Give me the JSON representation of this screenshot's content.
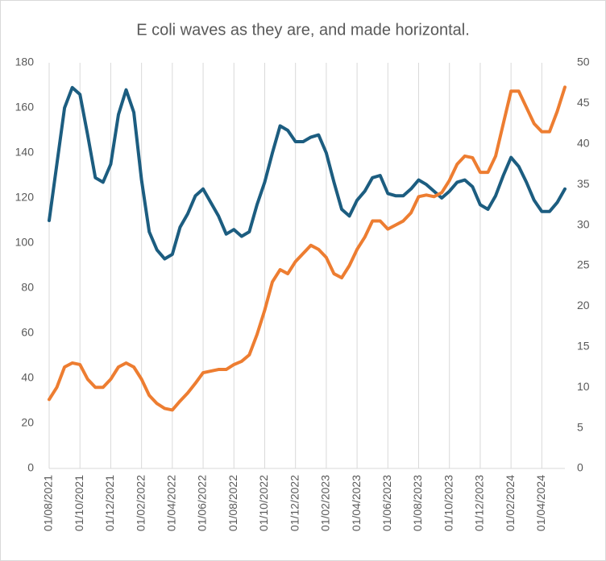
{
  "chart_data": {
    "type": "line",
    "title": "E coli waves as they are, and made horizontal.",
    "categories": [
      "01/08/2021",
      null,
      null,
      null,
      "01/10/2021",
      null,
      null,
      null,
      "01/12/2021",
      null,
      null,
      null,
      "01/02/2022",
      null,
      null,
      null,
      "01/04/2022",
      null,
      null,
      null,
      "01/06/2022",
      null,
      null,
      null,
      "01/08/2022",
      null,
      null,
      null,
      "01/10/2022",
      null,
      null,
      null,
      "01/12/2022",
      null,
      null,
      null,
      "01/02/2023",
      null,
      null,
      null,
      "01/04/2023",
      null,
      null,
      null,
      "01/06/2023",
      null,
      null,
      null,
      "01/08/2023",
      null,
      null,
      null,
      "01/10/2023",
      null,
      null,
      null,
      "01/12/2023",
      null,
      null,
      null,
      "01/02/2024",
      null,
      null,
      null,
      "01/04/2024",
      null,
      null,
      null
    ],
    "series": [
      {
        "color": "#1c5d80",
        "values": [
          110,
          135,
          160,
          169,
          166,
          148,
          129,
          127,
          135,
          157,
          168,
          158,
          128,
          105,
          97,
          93,
          95,
          107,
          113,
          121,
          124,
          118,
          112,
          104,
          106,
          103,
          105,
          117,
          127,
          140,
          152,
          150,
          145,
          145,
          147,
          148,
          140,
          127,
          115,
          112,
          119,
          123,
          129,
          130,
          122,
          121,
          121,
          124,
          128,
          126,
          123,
          120,
          123,
          127,
          128,
          125,
          117,
          115,
          121,
          130,
          138,
          134,
          127,
          119,
          114,
          114,
          118,
          124
        ]
      },
      {
        "color": "#ed7d31",
        "axis": "y2",
        "values": [
          8.5,
          10,
          12.5,
          13,
          12.8,
          11,
          10,
          10,
          11,
          12.5,
          13,
          12.5,
          11,
          9,
          8,
          7.4,
          7.2,
          8.3,
          9.3,
          10.5,
          11.8,
          12,
          12.2,
          12.2,
          12.8,
          13.2,
          14,
          16.5,
          19.5,
          23,
          24.5,
          24,
          25.5,
          26.5,
          27.5,
          27,
          26,
          24,
          23.5,
          25,
          27,
          28.5,
          30.5,
          30.5,
          29.5,
          30,
          30.5,
          31.5,
          33.5,
          33.7,
          33.5,
          34,
          35.5,
          37.5,
          38.5,
          38.3,
          36.5,
          36.5,
          38.5,
          42.5,
          46.5,
          46.5,
          44.5,
          42.5,
          41.5,
          41.5,
          44,
          47
        ]
      }
    ],
    "ylim": [
      0,
      180
    ],
    "yticks": [
      0,
      20,
      40,
      60,
      80,
      100,
      120,
      140,
      160,
      180
    ],
    "y2lim": [
      0,
      50
    ],
    "y2ticks": [
      0,
      5,
      10,
      15,
      20,
      25,
      30,
      35,
      40,
      45,
      50
    ],
    "grid": true
  }
}
